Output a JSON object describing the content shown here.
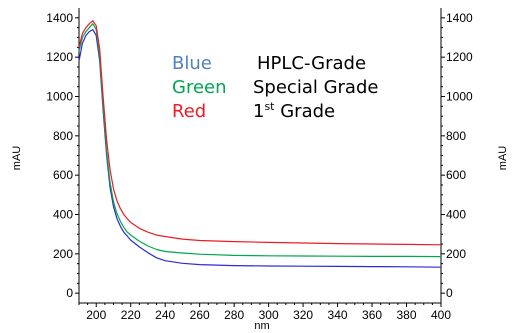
{
  "chart_data": {
    "type": "line",
    "xlabel": "nm",
    "ylabel_left": "mAU",
    "ylabel_right": "mAU",
    "xlim": [
      190,
      400
    ],
    "ylim": [
      -50,
      1450
    ],
    "x_ticks": [
      200,
      220,
      240,
      260,
      280,
      300,
      320,
      340,
      360,
      380,
      400
    ],
    "y_ticks": [
      0,
      200,
      400,
      600,
      800,
      1000,
      1200,
      1400
    ],
    "legend": [
      {
        "color_word": "Blue",
        "color": "#4f81bd",
        "label": "HPLC-Grade",
        "label_sup": ""
      },
      {
        "color_word": "Green",
        "color": "#00a650",
        "label": "Special Grade",
        "label_sup": ""
      },
      {
        "color_word": "Red",
        "color": "#ed1c24",
        "label": "1",
        "label_sup": "st",
        "label_after": " Grade"
      }
    ],
    "series": [
      {
        "color": "#2b2bd6",
        "x": [
          190,
          192,
          194,
          196,
          198,
          200,
          202,
          204,
          206,
          208,
          210,
          212,
          214,
          216,
          218,
          220,
          225,
          230,
          235,
          240,
          250,
          260,
          280,
          300,
          320,
          340,
          360,
          380,
          400
        ],
        "y": [
          1180,
          1270,
          1310,
          1330,
          1340,
          1310,
          1180,
          930,
          700,
          540,
          440,
          380,
          340,
          310,
          290,
          270,
          235,
          205,
          180,
          165,
          152,
          145,
          140,
          138,
          137,
          136,
          135,
          134,
          132
        ]
      },
      {
        "color": "#00a650",
        "x": [
          190,
          192,
          194,
          196,
          198,
          200,
          202,
          204,
          206,
          208,
          210,
          212,
          214,
          216,
          218,
          220,
          225,
          230,
          235,
          240,
          250,
          260,
          280,
          300,
          320,
          340,
          360,
          380,
          400
        ],
        "y": [
          1230,
          1300,
          1330,
          1350,
          1370,
          1340,
          1200,
          950,
          720,
          565,
          465,
          405,
          365,
          335,
          310,
          295,
          265,
          240,
          222,
          212,
          204,
          198,
          192,
          190,
          189,
          188,
          187,
          187,
          186
        ]
      },
      {
        "color": "#ed1c24",
        "x": [
          190,
          192,
          194,
          196,
          198,
          200,
          202,
          204,
          206,
          208,
          210,
          212,
          214,
          216,
          218,
          220,
          225,
          230,
          235,
          240,
          250,
          260,
          280,
          300,
          320,
          340,
          360,
          380,
          400
        ],
        "y": [
          1250,
          1320,
          1350,
          1370,
          1385,
          1360,
          1240,
          1000,
          780,
          630,
          530,
          470,
          430,
          400,
          378,
          360,
          330,
          310,
          295,
          288,
          275,
          268,
          262,
          258,
          255,
          252,
          250,
          248,
          246
        ]
      }
    ],
    "grid": false,
    "legend_placement": "top-center"
  }
}
